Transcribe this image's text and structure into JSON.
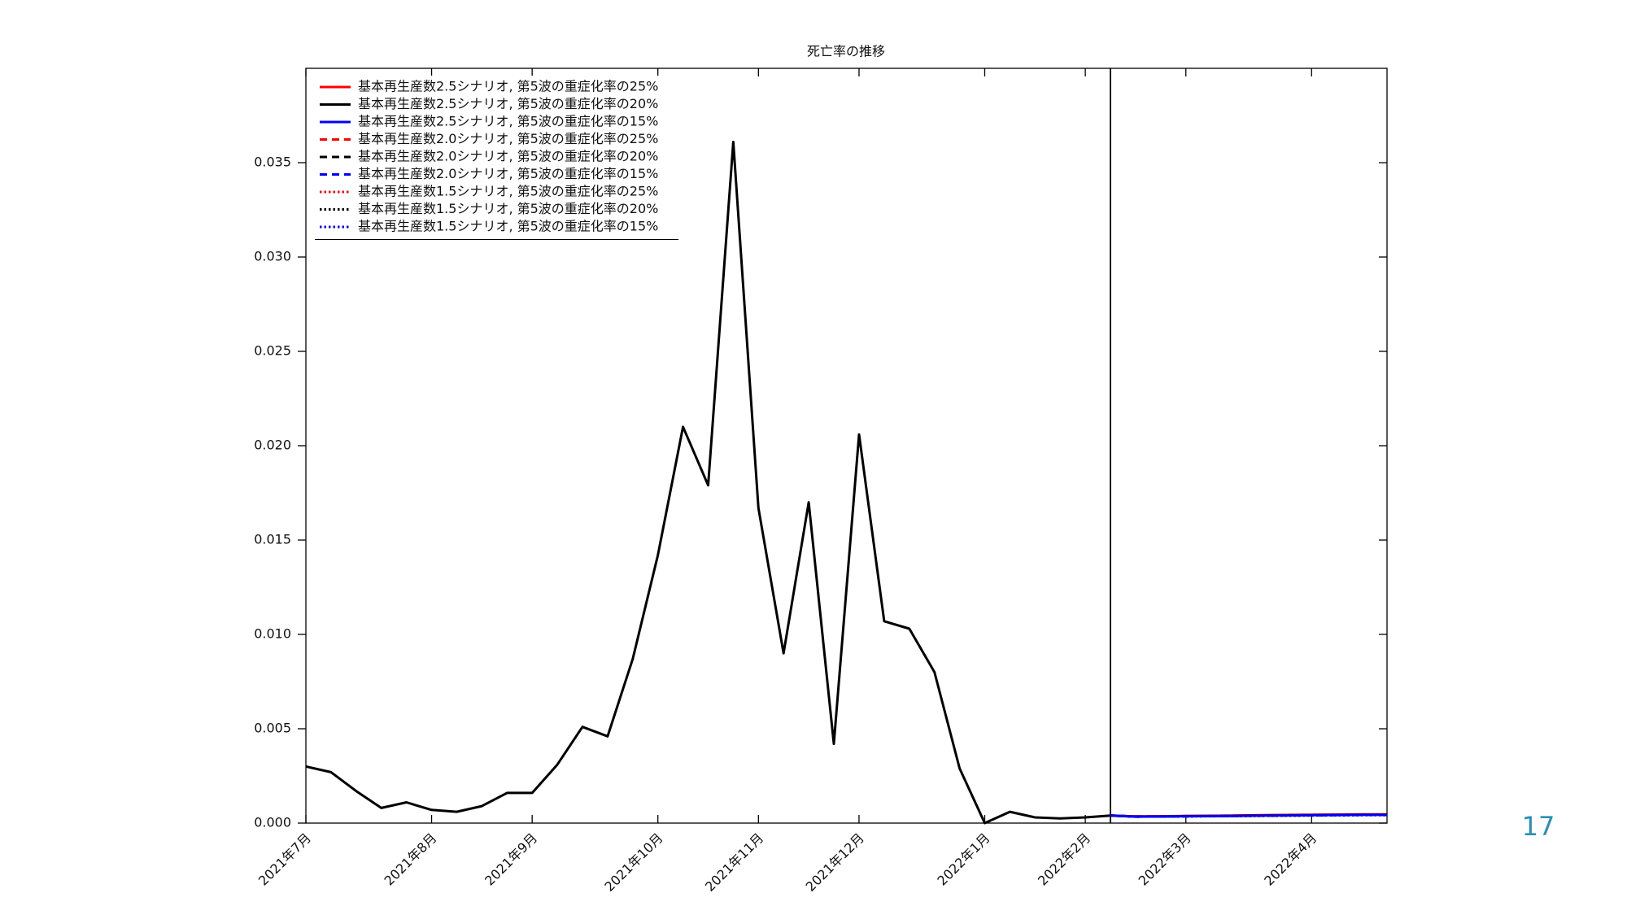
{
  "chart_data": {
    "type": "line",
    "title": "死亡率の推移",
    "categories": [
      "2021年7月",
      null,
      null,
      null,
      null,
      "2021年8月",
      null,
      null,
      null,
      "2021年9月",
      null,
      null,
      null,
      null,
      "2021年10月",
      null,
      null,
      null,
      "2021年11月",
      null,
      null,
      null,
      "2021年12月",
      null,
      null,
      null,
      null,
      "2022年1月",
      null,
      null,
      null,
      "2022年2月",
      null,
      null,
      null,
      "2022年3月",
      null,
      null,
      null,
      null,
      "2022年4月",
      null,
      null,
      null
    ],
    "xlim": [
      0,
      43
    ],
    "ylim": [
      0,
      0.04
    ],
    "yticks": [
      {
        "value": 0,
        "label": "0.000"
      },
      {
        "value": 0.005,
        "label": "0.005"
      },
      {
        "value": 0.01,
        "label": "0.010"
      },
      {
        "value": 0.015,
        "label": "0.015"
      },
      {
        "value": 0.02,
        "label": "0.020"
      },
      {
        "value": 0.025,
        "label": "0.025"
      },
      {
        "value": 0.03,
        "label": "0.030"
      },
      {
        "value": 0.035,
        "label": "0.035"
      }
    ],
    "vline": 32,
    "legend": "upper left",
    "series": [
      {
        "name": "基本再生産数2.5シナリオ, 第5波の重症化率の25%",
        "color": "#ff0000",
        "style": "solid",
        "values": [
          null,
          null,
          null,
          null,
          null,
          null,
          null,
          null,
          null,
          null,
          null,
          null,
          null,
          null,
          null,
          null,
          null,
          null,
          null,
          null,
          null,
          null,
          null,
          null,
          null,
          null,
          null,
          null,
          null,
          null,
          null,
          null,
          0.0004,
          0.00035,
          0.00036,
          0.00038,
          0.00039,
          0.0004,
          0.00042,
          0.00043,
          0.00044,
          0.00045,
          0.00046,
          0.00046
        ]
      },
      {
        "name": "基本再生産数2.5シナリオ, 第5波の重症化率の20%",
        "color": "#000000",
        "style": "solid",
        "values": [
          0.003,
          0.0027,
          0.0017,
          0.0008,
          0.0011,
          0.0007,
          0.0006,
          0.0009,
          0.0016,
          0.0016,
          0.0031,
          0.0051,
          0.0046,
          0.0087,
          0.0142,
          0.021,
          0.0179,
          0.0361,
          0.0167,
          0.009,
          0.017,
          0.0042,
          0.0206,
          0.0107,
          0.0103,
          0.008,
          0.0029,
          0.0,
          0.0006,
          0.0003,
          0.00025,
          0.0003,
          0.0004,
          0.00035,
          0.00035,
          0.00037,
          0.00038,
          0.00039,
          0.00041,
          0.00042,
          0.00043,
          0.00044,
          0.00045,
          0.00045
        ]
      },
      {
        "name": "基本再生産数2.5シナリオ, 第5波の重症化率の15%",
        "color": "#0000ff",
        "style": "solid",
        "values": [
          null,
          null,
          null,
          null,
          null,
          null,
          null,
          null,
          null,
          null,
          null,
          null,
          null,
          null,
          null,
          null,
          null,
          null,
          null,
          null,
          null,
          null,
          null,
          null,
          null,
          null,
          null,
          null,
          null,
          null,
          null,
          null,
          0.0004,
          0.00034,
          0.00035,
          0.00036,
          0.00037,
          0.00038,
          0.0004,
          0.00041,
          0.00042,
          0.00043,
          0.00044,
          0.00044
        ]
      },
      {
        "name": "基本再生産数2.0シナリオ, 第5波の重症化率の25%",
        "color": "#ff0000",
        "style": "dashed",
        "values": [
          null,
          null,
          null,
          null,
          null,
          null,
          null,
          null,
          null,
          null,
          null,
          null,
          null,
          null,
          null,
          null,
          null,
          null,
          null,
          null,
          null,
          null,
          null,
          null,
          null,
          null,
          null,
          null,
          null,
          null,
          null,
          null,
          0.0004,
          0.00035,
          0.00036,
          0.00037,
          0.00038,
          0.0004,
          0.00041,
          0.00042,
          0.00043,
          0.00044,
          0.00045,
          0.00045
        ]
      },
      {
        "name": "基本再生産数2.0シナリオ, 第5波の重症化率の20%",
        "color": "#000000",
        "style": "dashed",
        "values": [
          null,
          null,
          null,
          null,
          null,
          null,
          null,
          null,
          null,
          null,
          null,
          null,
          null,
          null,
          null,
          null,
          null,
          null,
          null,
          null,
          null,
          null,
          null,
          null,
          null,
          null,
          null,
          null,
          null,
          null,
          null,
          null,
          0.0004,
          0.00035,
          0.00035,
          0.00036,
          0.00038,
          0.00039,
          0.0004,
          0.00041,
          0.00042,
          0.00043,
          0.00044,
          0.00044
        ]
      },
      {
        "name": "基本再生産数2.0シナリオ, 第5波の重症化率の15%",
        "color": "#0000ff",
        "style": "dashed",
        "values": [
          null,
          null,
          null,
          null,
          null,
          null,
          null,
          null,
          null,
          null,
          null,
          null,
          null,
          null,
          null,
          null,
          null,
          null,
          null,
          null,
          null,
          null,
          null,
          null,
          null,
          null,
          null,
          null,
          null,
          null,
          null,
          null,
          0.0004,
          0.00034,
          0.00035,
          0.00036,
          0.00037,
          0.00038,
          0.00039,
          0.0004,
          0.00041,
          0.00042,
          0.00043,
          0.00043
        ]
      },
      {
        "name": "基本再生産数1.5シナリオ, 第5波の重症化率の25%",
        "color": "#ff0000",
        "style": "dotted",
        "values": [
          null,
          null,
          null,
          null,
          null,
          null,
          null,
          null,
          null,
          null,
          null,
          null,
          null,
          null,
          null,
          null,
          null,
          null,
          null,
          null,
          null,
          null,
          null,
          null,
          null,
          null,
          null,
          null,
          null,
          null,
          null,
          null,
          0.0004,
          0.00035,
          0.00036,
          0.00037,
          0.00038,
          0.00039,
          0.0004,
          0.00041,
          0.00042,
          0.00043,
          0.00044,
          0.00044
        ]
      },
      {
        "name": "基本再生産数1.5シナリオ, 第5波の重症化率の20%",
        "color": "#000000",
        "style": "dotted",
        "values": [
          null,
          null,
          null,
          null,
          null,
          null,
          null,
          null,
          null,
          null,
          null,
          null,
          null,
          null,
          null,
          null,
          null,
          null,
          null,
          null,
          null,
          null,
          null,
          null,
          null,
          null,
          null,
          null,
          null,
          null,
          null,
          null,
          0.0004,
          0.00034,
          0.00035,
          0.00036,
          0.00037,
          0.00038,
          0.00039,
          0.0004,
          0.00041,
          0.00042,
          0.00043,
          0.00043
        ]
      },
      {
        "name": "基本再生産数1.5シナリオ, 第5波の重症化率の15%",
        "color": "#0000ff",
        "style": "dotted",
        "values": [
          null,
          null,
          null,
          null,
          null,
          null,
          null,
          null,
          null,
          null,
          null,
          null,
          null,
          null,
          null,
          null,
          null,
          null,
          null,
          null,
          null,
          null,
          null,
          null,
          null,
          null,
          null,
          null,
          null,
          null,
          null,
          null,
          0.0004,
          0.00034,
          0.00035,
          0.00035,
          0.00036,
          0.00037,
          0.00038,
          0.00039,
          0.0004,
          0.00041,
          0.00042,
          0.00042
        ]
      }
    ]
  },
  "page_number": "17"
}
